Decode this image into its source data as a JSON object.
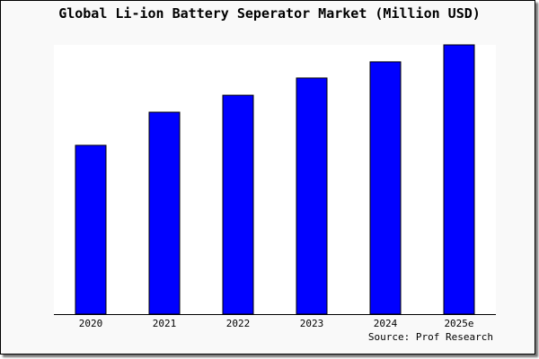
{
  "chart_data": {
    "type": "bar",
    "title": "Global Li-ion Battery Seperator Market (Million USD)",
    "source": "Source: Prof Research",
    "categories": [
      "2020",
      "2021",
      "2022",
      "2023",
      "2024",
      "2025e"
    ],
    "values": [
      62.7,
      75.0,
      81.3,
      87.7,
      93.7,
      100
    ],
    "ylim": [
      0,
      100
    ],
    "grid": false,
    "bar_color": "#0000ff",
    "background": "#f9f9f9",
    "plot_background": "#ffffff"
  }
}
